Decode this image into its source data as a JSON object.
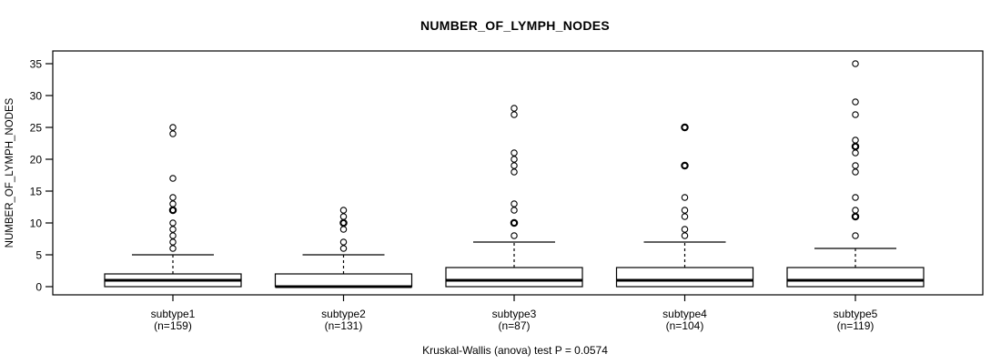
{
  "chart_data": {
    "type": "boxplot",
    "title": "NUMBER_OF_LYMPH_NODES",
    "ylabel": "NUMBER_OF_LYMPH_NODES",
    "annotation": "Kruskal-Wallis (anova) test P = 0.0574",
    "ylim": [
      0,
      35
    ],
    "yticks": [
      0,
      5,
      10,
      15,
      20,
      25,
      30,
      35
    ],
    "grid": false,
    "legend": "none",
    "colors": {
      "stroke": "#000000",
      "fill": "#ffffff",
      "text": "#000000"
    },
    "groups": [
      {
        "label": "subtype1",
        "n_label": "(n=159)",
        "n": 159,
        "q1": 0,
        "median": 1,
        "q3": 2,
        "whisker_low": 0,
        "whisker_high": 5,
        "outliers": [
          6,
          7,
          8,
          9,
          10,
          12,
          12,
          13,
          14,
          17,
          24,
          25
        ]
      },
      {
        "label": "subtype2",
        "n_label": "(n=131)",
        "n": 131,
        "q1": 0,
        "median": 0,
        "q3": 2,
        "whisker_low": 0,
        "whisker_high": 5,
        "outliers": [
          6,
          7,
          9,
          10,
          10,
          11,
          12
        ]
      },
      {
        "label": "subtype3",
        "n_label": "(n=87)",
        "n": 87,
        "q1": 0,
        "median": 1,
        "q3": 3,
        "whisker_low": 0,
        "whisker_high": 7,
        "outliers": [
          8,
          10,
          10,
          12,
          13,
          18,
          19,
          20,
          21,
          27,
          28
        ]
      },
      {
        "label": "subtype4",
        "n_label": "(n=104)",
        "n": 104,
        "q1": 0,
        "median": 1,
        "q3": 3,
        "whisker_low": 0,
        "whisker_high": 7,
        "outliers": [
          8,
          9,
          11,
          12,
          14,
          19,
          19,
          25,
          25
        ]
      },
      {
        "label": "subtype5",
        "n_label": "(n=119)",
        "n": 119,
        "q1": 0,
        "median": 1,
        "q3": 3,
        "whisker_low": 0,
        "whisker_high": 6,
        "outliers": [
          8,
          11,
          11,
          12,
          14,
          18,
          19,
          21,
          22,
          22,
          23,
          27,
          29,
          35
        ]
      }
    ]
  }
}
